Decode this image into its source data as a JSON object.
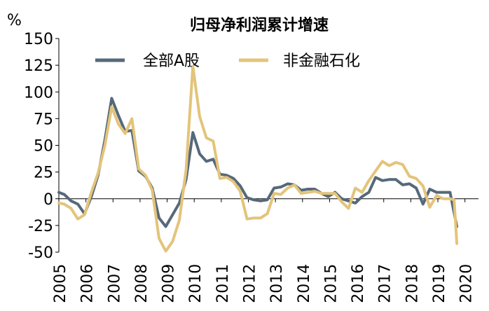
{
  "chart_data": {
    "type": "line",
    "title": "归母净利润累计增速",
    "unit_label": "%",
    "ylim": [
      -50,
      150
    ],
    "yticks": [
      150,
      125,
      100,
      75,
      50,
      25,
      0,
      -25,
      -50
    ],
    "xlim": [
      2005.0,
      2020.5
    ],
    "xticks": [
      2005,
      2006,
      2007,
      2008,
      2009,
      2010,
      2011,
      2012,
      2013,
      2014,
      2015,
      2016,
      2017,
      2018,
      2019,
      2020
    ],
    "grid": false,
    "legend_position": "top",
    "series": [
      {
        "name": "全部A股",
        "color": "#56697a",
        "points": [
          [
            2005.0,
            6
          ],
          [
            2005.2,
            4
          ],
          [
            2005.45,
            -2
          ],
          [
            2005.7,
            -5
          ],
          [
            2005.95,
            -14
          ],
          [
            2006.2,
            2
          ],
          [
            2006.45,
            22
          ],
          [
            2006.7,
            55
          ],
          [
            2006.95,
            94
          ],
          [
            2007.2,
            78
          ],
          [
            2007.45,
            63
          ],
          [
            2007.7,
            64
          ],
          [
            2007.95,
            26
          ],
          [
            2008.2,
            21
          ],
          [
            2008.45,
            10
          ],
          [
            2008.7,
            -18
          ],
          [
            2008.95,
            -26
          ],
          [
            2009.2,
            -15
          ],
          [
            2009.45,
            -4
          ],
          [
            2009.7,
            18
          ],
          [
            2009.95,
            62
          ],
          [
            2010.2,
            42
          ],
          [
            2010.45,
            35
          ],
          [
            2010.7,
            37
          ],
          [
            2010.95,
            23
          ],
          [
            2011.2,
            22
          ],
          [
            2011.45,
            19
          ],
          [
            2011.7,
            12
          ],
          [
            2011.95,
            1
          ],
          [
            2012.2,
            -1
          ],
          [
            2012.45,
            -2
          ],
          [
            2012.7,
            -1
          ],
          [
            2012.95,
            10
          ],
          [
            2013.2,
            11
          ],
          [
            2013.45,
            14
          ],
          [
            2013.7,
            13
          ],
          [
            2013.95,
            8
          ],
          [
            2014.2,
            9
          ],
          [
            2014.45,
            9
          ],
          [
            2014.7,
            5
          ],
          [
            2014.95,
            2
          ],
          [
            2015.2,
            6
          ],
          [
            2015.45,
            0
          ],
          [
            2015.7,
            -2
          ],
          [
            2015.95,
            -4
          ],
          [
            2016.2,
            2
          ],
          [
            2016.45,
            6
          ],
          [
            2016.7,
            20
          ],
          [
            2016.95,
            17
          ],
          [
            2017.2,
            18
          ],
          [
            2017.45,
            18
          ],
          [
            2017.7,
            13
          ],
          [
            2017.95,
            14
          ],
          [
            2018.2,
            10
          ],
          [
            2018.45,
            -5
          ],
          [
            2018.7,
            9
          ],
          [
            2018.95,
            6
          ],
          [
            2019.2,
            6
          ],
          [
            2019.45,
            6
          ],
          [
            2019.7,
            -26
          ]
        ]
      },
      {
        "name": "非金融石化",
        "color": "#e3c47a",
        "points": [
          [
            2005.0,
            -4
          ],
          [
            2005.2,
            -5
          ],
          [
            2005.45,
            -9
          ],
          [
            2005.7,
            -19
          ],
          [
            2005.95,
            -15
          ],
          [
            2006.2,
            6
          ],
          [
            2006.45,
            24
          ],
          [
            2006.7,
            50
          ],
          [
            2006.95,
            86
          ],
          [
            2007.2,
            70
          ],
          [
            2007.45,
            61
          ],
          [
            2007.7,
            75
          ],
          [
            2007.95,
            28
          ],
          [
            2008.2,
            22
          ],
          [
            2008.45,
            8
          ],
          [
            2008.7,
            -37
          ],
          [
            2008.95,
            -49
          ],
          [
            2009.2,
            -40
          ],
          [
            2009.45,
            -20
          ],
          [
            2009.7,
            27
          ],
          [
            2009.95,
            124
          ],
          [
            2010.2,
            77
          ],
          [
            2010.45,
            57
          ],
          [
            2010.7,
            54
          ],
          [
            2010.95,
            19
          ],
          [
            2011.2,
            20
          ],
          [
            2011.45,
            16
          ],
          [
            2011.7,
            7
          ],
          [
            2011.95,
            -19
          ],
          [
            2012.2,
            -18
          ],
          [
            2012.45,
            -18
          ],
          [
            2012.7,
            -14
          ],
          [
            2012.95,
            5
          ],
          [
            2013.2,
            4
          ],
          [
            2013.45,
            10
          ],
          [
            2013.7,
            13
          ],
          [
            2013.95,
            5
          ],
          [
            2014.2,
            6
          ],
          [
            2014.45,
            7
          ],
          [
            2014.7,
            5
          ],
          [
            2014.95,
            5
          ],
          [
            2015.2,
            5
          ],
          [
            2015.45,
            -3
          ],
          [
            2015.7,
            -9
          ],
          [
            2015.95,
            10
          ],
          [
            2016.2,
            6
          ],
          [
            2016.45,
            17
          ],
          [
            2016.7,
            26
          ],
          [
            2016.95,
            35
          ],
          [
            2017.2,
            31
          ],
          [
            2017.45,
            34
          ],
          [
            2017.7,
            32
          ],
          [
            2017.95,
            21
          ],
          [
            2018.2,
            19
          ],
          [
            2018.45,
            12
          ],
          [
            2018.7,
            -8
          ],
          [
            2018.95,
            3
          ],
          [
            2019.2,
            0
          ],
          [
            2019.45,
            0
          ],
          [
            2019.6,
            -1
          ],
          [
            2019.7,
            -42
          ]
        ]
      }
    ]
  }
}
